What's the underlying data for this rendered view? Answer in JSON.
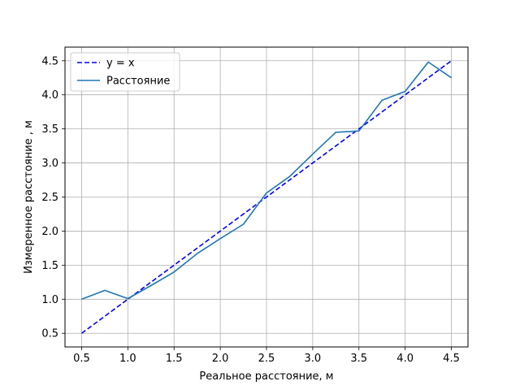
{
  "chart_data": {
    "type": "line",
    "xlabel": "Реальное расстояние, м",
    "ylabel": "Измеренное расстояние , м",
    "xlim": [
      0.32,
      4.68
    ],
    "ylim": [
      0.3,
      4.7
    ],
    "xticks": [
      0.5,
      1.0,
      1.5,
      2.0,
      2.5,
      3.0,
      3.5,
      4.0,
      4.5
    ],
    "xtick_labels": [
      "0.5",
      "1.0",
      "1.5",
      "2.0",
      "2.5",
      "3.0",
      "3.5",
      "4.0",
      "4.5"
    ],
    "yticks": [
      0.5,
      1.0,
      1.5,
      2.0,
      2.5,
      3.0,
      3.5,
      4.0,
      4.5
    ],
    "ytick_labels": [
      "0.5",
      "1.0",
      "1.5",
      "2.0",
      "2.5",
      "3.0",
      "3.5",
      "4.0",
      "4.5"
    ],
    "grid": true,
    "legend_position": "top-left",
    "series": [
      {
        "name": "y = x",
        "color": "#0000ff",
        "style": "dashed",
        "x": [
          0.5,
          4.5
        ],
        "y": [
          0.5,
          4.5
        ]
      },
      {
        "name": "Расстояние",
        "color": "#1f77b4",
        "style": "solid",
        "x": [
          0.5,
          0.75,
          1.0,
          1.25,
          1.5,
          1.75,
          2.0,
          2.25,
          2.5,
          2.75,
          3.0,
          3.25,
          3.5,
          3.75,
          4.0,
          4.25,
          4.5
        ],
        "y": [
          1.0,
          1.13,
          1.01,
          1.2,
          1.4,
          1.67,
          1.89,
          2.1,
          2.56,
          2.8,
          3.13,
          3.45,
          3.47,
          3.92,
          4.05,
          4.48,
          4.25
        ]
      }
    ]
  }
}
